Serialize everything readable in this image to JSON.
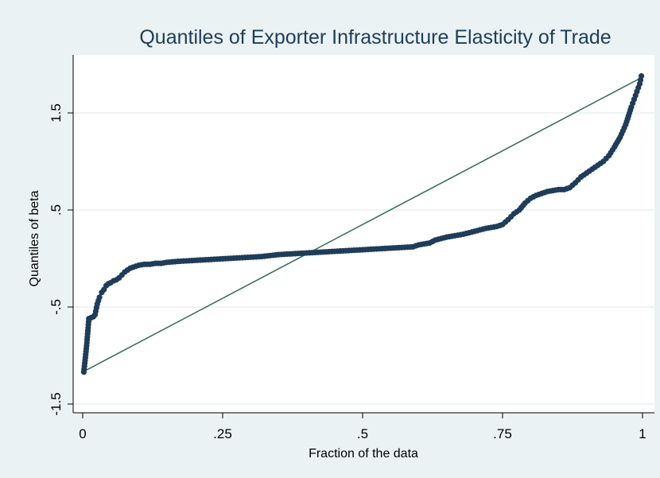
{
  "chart_data": {
    "type": "scatter",
    "title": "Quantiles of Exporter Infrastructure Elasticity of Trade",
    "xlabel": "Fraction of the data",
    "ylabel": "Quantiles of beta",
    "xlim": [
      0,
      1
    ],
    "ylim": [
      -1.5,
      2.0
    ],
    "x_ticks": [
      0,
      0.25,
      0.5,
      0.75,
      1
    ],
    "x_tick_labels": [
      "0",
      ".25",
      ".5",
      ".75",
      "1"
    ],
    "y_ticks": [
      -1.5,
      -0.5,
      0.5,
      1.5
    ],
    "y_tick_labels": [
      "-1.5",
      "-.5",
      ".5",
      "1.5"
    ],
    "grid": true,
    "legend": "none",
    "colors": {
      "background": "#eaf2f3",
      "plot_background": "#ffffff",
      "points": "#1e3d5a",
      "reference_line": "#2e6e57",
      "grid": "#e4ecef",
      "title": "#1e3d5a"
    },
    "reference_line": {
      "x": [
        0,
        1
      ],
      "y": [
        -1.17,
        1.87
      ]
    },
    "series": [
      {
        "type": "quantile-points",
        "x": [
          0.002,
          0.007,
          0.011,
          0.015,
          0.019,
          0.022,
          0.026,
          0.03,
          0.034,
          0.038,
          0.042,
          0.046,
          0.05,
          0.055,
          0.06,
          0.065,
          0.07,
          0.075,
          0.08,
          0.085,
          0.09,
          0.095,
          0.1,
          0.11,
          0.12,
          0.13,
          0.14,
          0.15,
          0.17,
          0.2,
          0.23,
          0.26,
          0.29,
          0.32,
          0.35,
          0.38,
          0.41,
          0.44,
          0.47,
          0.5,
          0.53,
          0.56,
          0.59,
          0.6,
          0.62,
          0.63,
          0.65,
          0.68,
          0.7,
          0.72,
          0.74,
          0.75,
          0.76,
          0.77,
          0.78,
          0.79,
          0.8,
          0.81,
          0.82,
          0.83,
          0.84,
          0.85,
          0.86,
          0.87,
          0.88,
          0.89,
          0.9,
          0.91,
          0.92,
          0.93,
          0.94,
          0.95,
          0.96,
          0.97,
          0.975,
          0.98,
          0.985,
          0.99,
          0.995,
          0.998
        ],
        "y": [
          -1.17,
          -0.9,
          -0.62,
          -0.61,
          -0.6,
          -0.58,
          -0.47,
          -0.4,
          -0.35,
          -0.32,
          -0.28,
          -0.26,
          -0.25,
          -0.23,
          -0.22,
          -0.2,
          -0.17,
          -0.14,
          -0.12,
          -0.1,
          -0.09,
          -0.08,
          -0.07,
          -0.06,
          -0.06,
          -0.05,
          -0.05,
          -0.04,
          -0.03,
          -0.02,
          -0.01,
          0.0,
          0.01,
          0.02,
          0.04,
          0.05,
          0.06,
          0.07,
          0.08,
          0.09,
          0.1,
          0.11,
          0.12,
          0.14,
          0.16,
          0.19,
          0.22,
          0.25,
          0.28,
          0.31,
          0.33,
          0.35,
          0.4,
          0.46,
          0.5,
          0.57,
          0.62,
          0.65,
          0.67,
          0.69,
          0.7,
          0.71,
          0.71,
          0.73,
          0.78,
          0.84,
          0.88,
          0.92,
          0.96,
          1.0,
          1.06,
          1.15,
          1.25,
          1.38,
          1.47,
          1.56,
          1.64,
          1.72,
          1.8,
          1.88
        ]
      }
    ]
  }
}
